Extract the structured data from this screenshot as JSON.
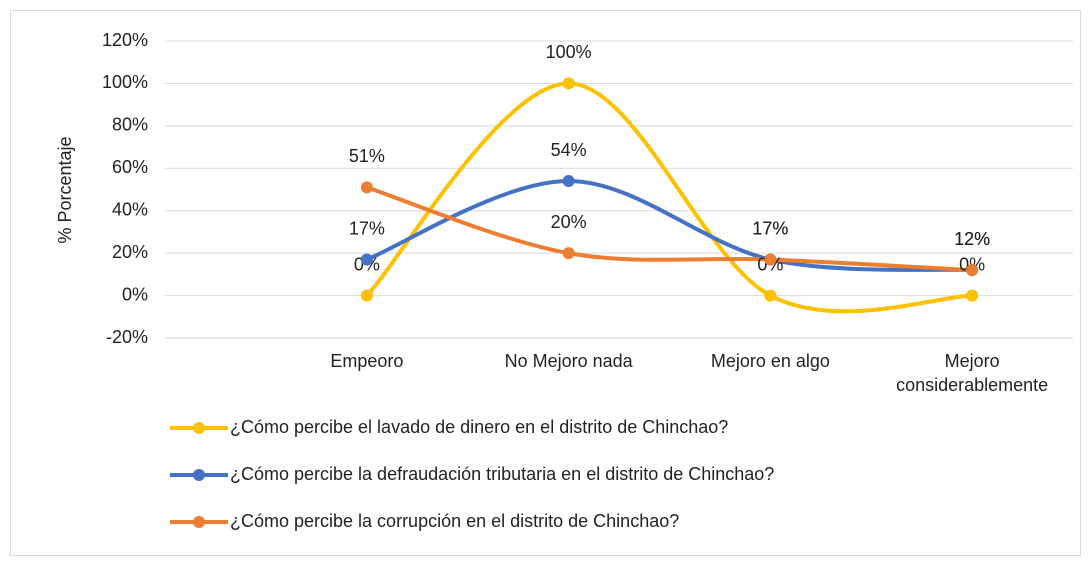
{
  "chart_data": {
    "type": "line",
    "y_label": "% Porcentaje",
    "categories": [
      "Empeoro",
      "No Mejoro nada",
      "Mejoro en algo",
      "Mejoro considerablemente"
    ],
    "series": [
      {
        "name": "¿Cómo percibe el lavado de dinero en el distrito de Chinchao?",
        "color": "#FFC000",
        "values": [
          0,
          100,
          0,
          0
        ],
        "value_labels": [
          "0%",
          "100%",
          "0%",
          "0%"
        ]
      },
      {
        "name": "¿Cómo percibe la defraudación tributaria en el distrito de Chinchao?",
        "color": "#4472C4",
        "values": [
          17,
          54,
          17,
          12
        ],
        "value_labels": [
          "17%",
          "54%",
          "17%",
          "12%"
        ]
      },
      {
        "name": "¿Cómo percibe la corrupción en el distrito de Chinchao?",
        "color": "#ED7D31",
        "values": [
          51,
          20,
          17,
          12
        ],
        "value_labels": [
          "51%",
          "20%",
          "17%",
          "12%"
        ]
      }
    ],
    "ylim": [
      -20,
      120
    ],
    "yticks": [
      {
        "value": -20,
        "label": "-20%"
      },
      {
        "value": 0,
        "label": "0%"
      },
      {
        "value": 20,
        "label": "20%"
      },
      {
        "value": 40,
        "label": "40%"
      },
      {
        "value": 60,
        "label": "60%"
      },
      {
        "value": 80,
        "label": "80%"
      },
      {
        "value": 100,
        "label": "100%"
      },
      {
        "value": 120,
        "label": "120%"
      }
    ],
    "grid": true,
    "smooth": true,
    "legend": "bottom"
  }
}
